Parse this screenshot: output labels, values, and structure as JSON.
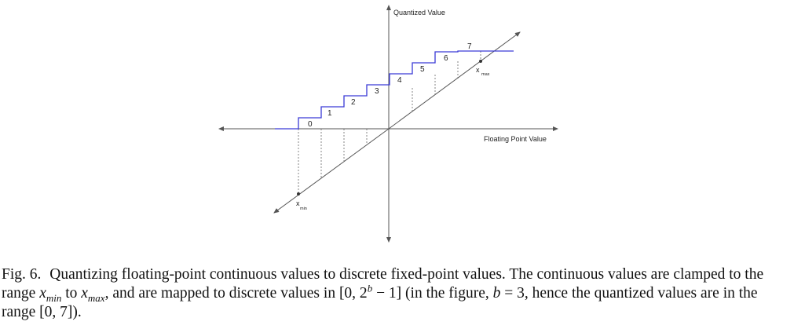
{
  "figure": {
    "y_axis_label": "Quantized Value",
    "x_axis_label": "Floating Point Value",
    "step_labels": [
      "0",
      "1",
      "2",
      "3",
      "4",
      "5",
      "6",
      "7"
    ],
    "x_min_label": "x",
    "x_min_sub": "min",
    "x_max_label": "x",
    "x_max_sub": "max",
    "colors": {
      "steps": "#3a3ad6",
      "axes": "#555555",
      "diagonal": "#555555",
      "dashes": "#666666"
    }
  },
  "caption": {
    "fig_label": "Fig. 6.",
    "text_1": "Quantizing floating-point continuous values to discrete fixed-point values. The continuous values are clamped to the range",
    "x": "x",
    "min": "min",
    "to": "to",
    "max": "max",
    "text_2": ", and are mapped to discrete values in [0, 2",
    "b": "b",
    "text_3": " − 1] (in the figure,",
    "text_4": "= 3, hence the quantized values are in the range [0, 7])."
  }
}
